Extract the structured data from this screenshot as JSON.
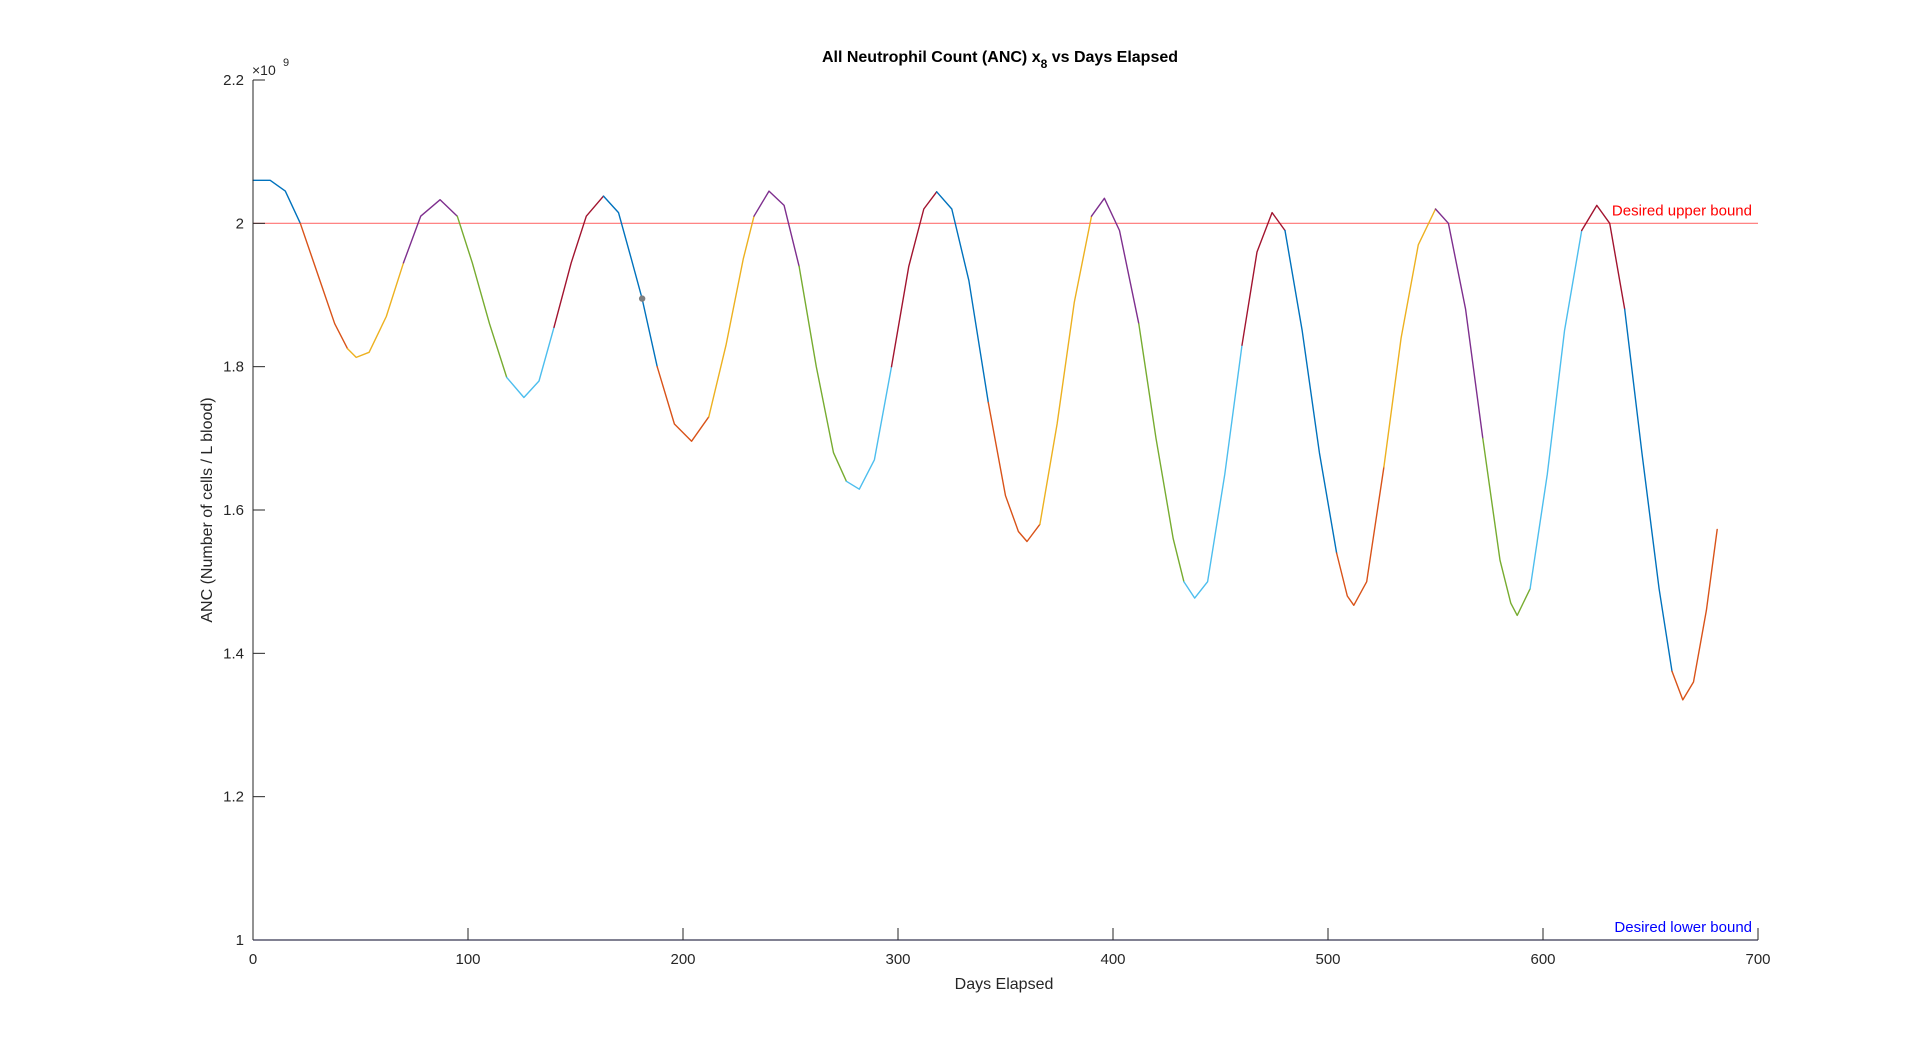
{
  "chart_data": {
    "type": "line",
    "title_main": "All Neutrophil Count (ANC) x",
    "title_sub": "8",
    "title_rest": " vs Days Elapsed",
    "xlabel": "Days Elapsed",
    "ylabel": "ANC (Number of cells / L blood)",
    "xlim": [
      0,
      700
    ],
    "ylim": [
      1.0,
      2.2
    ],
    "y_exponent_base": "×10",
    "y_exponent_power": "9",
    "x_ticks": [
      0,
      100,
      200,
      300,
      400,
      500,
      600,
      700
    ],
    "x_tick_labels": [
      "0",
      "100",
      "200",
      "300",
      "400",
      "500",
      "600",
      "700"
    ],
    "y_ticks": [
      1.0,
      1.2,
      1.4,
      1.6,
      1.8,
      2.0,
      2.2
    ],
    "y_tick_labels": [
      "1",
      "1.2",
      "1.4",
      "1.6",
      "1.8",
      "2",
      "2.2"
    ],
    "reference_lines": [
      {
        "y": 2.0,
        "label": "Desired upper bound",
        "color": "#ff0000"
      },
      {
        "y": 1.0,
        "label": "Desired lower bound",
        "color": "#0000ff"
      }
    ],
    "marker": {
      "x": 181,
      "y": 1.895,
      "color": "#7f7f7f"
    },
    "grid": false,
    "curve_points": [
      [
        0,
        2.06
      ],
      [
        8,
        2.06
      ],
      [
        15,
        2.045
      ],
      [
        22,
        2.0
      ],
      [
        30,
        1.93
      ],
      [
        38,
        1.86
      ],
      [
        44,
        1.825
      ],
      [
        48,
        1.813
      ],
      [
        54,
        1.82
      ],
      [
        62,
        1.87
      ],
      [
        70,
        1.945
      ],
      [
        78,
        2.01
      ],
      [
        87,
        2.033
      ],
      [
        95,
        2.01
      ],
      [
        102,
        1.945
      ],
      [
        110,
        1.86
      ],
      [
        118,
        1.785
      ],
      [
        126,
        1.757
      ],
      [
        133,
        1.78
      ],
      [
        140,
        1.855
      ],
      [
        148,
        1.945
      ],
      [
        155,
        2.01
      ],
      [
        163,
        2.038
      ],
      [
        170,
        2.015
      ],
      [
        176,
        1.95
      ],
      [
        181,
        1.895
      ],
      [
        188,
        1.8
      ],
      [
        196,
        1.72
      ],
      [
        204,
        1.696
      ],
      [
        212,
        1.73
      ],
      [
        220,
        1.83
      ],
      [
        228,
        1.95
      ],
      [
        233,
        2.01
      ],
      [
        240,
        2.045
      ],
      [
        247,
        2.025
      ],
      [
        254,
        1.94
      ],
      [
        262,
        1.8
      ],
      [
        270,
        1.68
      ],
      [
        276,
        1.64
      ],
      [
        282,
        1.629
      ],
      [
        289,
        1.67
      ],
      [
        297,
        1.8
      ],
      [
        305,
        1.94
      ],
      [
        312,
        2.02
      ],
      [
        318,
        2.044
      ],
      [
        325,
        2.02
      ],
      [
        333,
        1.92
      ],
      [
        342,
        1.75
      ],
      [
        350,
        1.62
      ],
      [
        356,
        1.57
      ],
      [
        360,
        1.556
      ],
      [
        366,
        1.58
      ],
      [
        374,
        1.72
      ],
      [
        382,
        1.89
      ],
      [
        390,
        2.01
      ],
      [
        396,
        2.035
      ],
      [
        403,
        1.99
      ],
      [
        412,
        1.86
      ],
      [
        420,
        1.7
      ],
      [
        428,
        1.56
      ],
      [
        433,
        1.5
      ],
      [
        438,
        1.477
      ],
      [
        444,
        1.5
      ],
      [
        452,
        1.65
      ],
      [
        460,
        1.83
      ],
      [
        467,
        1.96
      ],
      [
        474,
        2.015
      ],
      [
        480,
        1.99
      ],
      [
        488,
        1.85
      ],
      [
        496,
        1.68
      ],
      [
        504,
        1.54
      ],
      [
        509,
        1.48
      ],
      [
        512,
        1.467
      ],
      [
        518,
        1.5
      ],
      [
        526,
        1.66
      ],
      [
        534,
        1.84
      ],
      [
        542,
        1.97
      ],
      [
        550,
        2.02
      ],
      [
        556,
        2.0
      ],
      [
        564,
        1.88
      ],
      [
        572,
        1.7
      ],
      [
        580,
        1.53
      ],
      [
        585,
        1.47
      ],
      [
        588,
        1.453
      ],
      [
        594,
        1.49
      ],
      [
        602,
        1.65
      ],
      [
        610,
        1.85
      ],
      [
        618,
        1.99
      ],
      [
        625,
        2.025
      ],
      [
        631,
        2.0
      ],
      [
        638,
        1.88
      ],
      [
        646,
        1.68
      ],
      [
        654,
        1.49
      ],
      [
        660,
        1.375
      ],
      [
        665,
        1.335
      ],
      [
        670,
        1.36
      ],
      [
        676,
        1.46
      ],
      [
        681,
        1.573
      ]
    ],
    "segment_colors": [
      "#0072bd",
      "#d95319",
      "#edb120",
      "#7e2f8e",
      "#77ac30",
      "#4dbeee",
      "#a2142f"
    ],
    "segment_span": 20
  }
}
